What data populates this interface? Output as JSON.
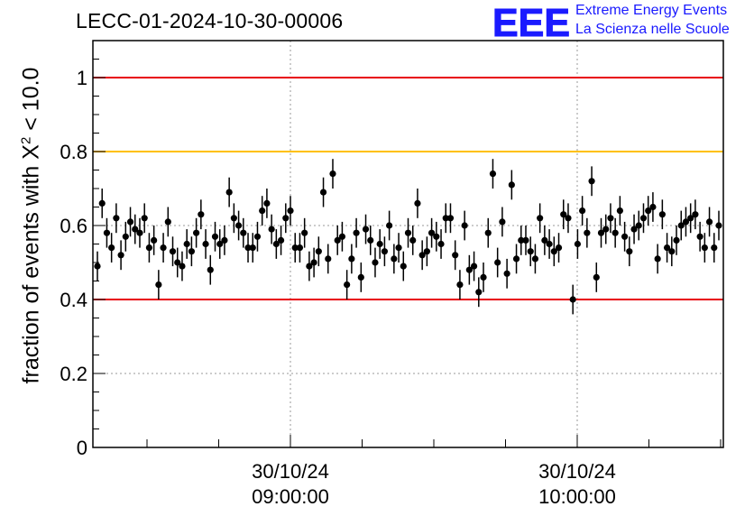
{
  "title": "LECC-01-2024-10-30-00006",
  "logo": {
    "mark": "EEE",
    "line1": "Extreme Energy Events",
    "line2": "La Scienza nelle Scuole"
  },
  "colors": {
    "red_line": "#e8000b",
    "orange_line": "#ffc000",
    "points": "#000000",
    "logo": "#1a1aff",
    "grid": "#999999"
  },
  "chart_data": {
    "type": "scatter",
    "ylabel_prefix": "fraction of events with X",
    "ylabel_exp": "2",
    "ylabel_suffix": " < 10.0",
    "ylim": [
      0,
      1.1
    ],
    "y_ticks": [
      "0",
      "0.2",
      "0.4",
      "0.6",
      "0.8",
      "1"
    ],
    "x_tick_labels": [
      {
        "date": "30/10/24",
        "time": "09:00:00"
      },
      {
        "date": "30/10/24",
        "time": "10:00:00"
      }
    ],
    "grid": "dotted at labeled ticks",
    "reference_lines": [
      {
        "y": 1.0,
        "color": "red"
      },
      {
        "y": 0.8,
        "color": "orange"
      },
      {
        "y": 0.4,
        "color": "red"
      }
    ],
    "error_bar_half_width": 0.04,
    "series": [
      {
        "values": [
          0.49,
          0.66,
          0.58,
          0.54,
          0.62,
          0.52,
          0.57,
          0.61,
          0.59,
          0.58,
          0.62,
          0.54,
          0.56,
          0.44,
          0.54,
          0.61,
          0.53,
          0.5,
          0.49,
          0.55,
          0.53,
          0.58,
          0.63,
          0.55,
          0.48,
          0.57,
          0.55,
          0.56,
          0.69,
          0.62,
          0.6,
          0.58,
          0.54,
          0.54,
          0.57,
          0.64,
          0.66,
          0.59,
          0.55,
          0.56,
          0.62,
          0.64,
          0.54,
          0.54,
          0.58,
          0.49,
          0.5,
          0.53,
          0.69,
          0.51,
          0.74,
          0.56,
          0.57,
          0.44,
          0.51,
          0.58,
          0.46,
          0.59,
          0.56,
          0.5,
          0.55,
          0.53,
          0.6,
          0.51,
          0.54,
          0.49,
          0.58,
          0.56,
          0.66,
          0.52,
          0.53,
          0.58,
          0.57,
          0.55,
          0.62,
          0.62,
          0.52,
          0.44,
          0.6,
          0.48,
          0.49,
          0.42,
          0.46,
          0.58,
          0.74,
          0.5,
          0.61,
          0.47,
          0.71,
          0.51,
          0.56,
          0.56,
          0.53,
          0.51,
          0.62,
          0.56,
          0.55,
          0.53,
          0.54,
          0.63,
          0.62,
          0.4,
          0.55,
          0.64,
          0.58,
          0.72,
          0.46,
          0.58,
          0.59,
          0.62,
          0.58,
          0.64,
          0.57,
          0.53,
          0.59,
          0.6,
          0.62,
          0.64,
          0.65,
          0.51,
          0.63,
          0.54,
          0.53,
          0.56,
          0.6,
          0.61,
          0.62,
          0.63,
          0.57,
          0.54,
          0.61,
          0.54,
          0.6
        ]
      }
    ]
  }
}
